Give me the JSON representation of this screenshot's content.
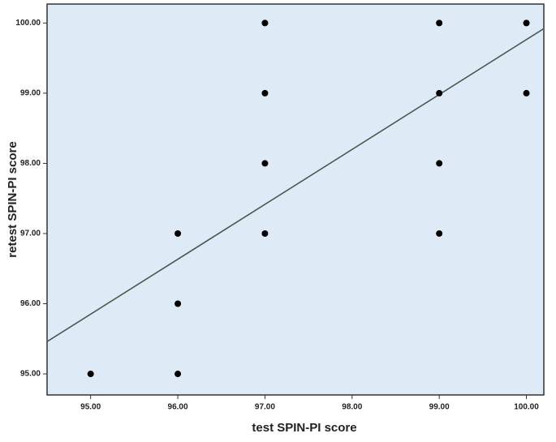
{
  "chart_data": {
    "type": "scatter",
    "x_label": "test SPIN-PI score",
    "y_label": "retest SPIN-PI score",
    "x": [
      95,
      96,
      96,
      96,
      97,
      97,
      97,
      97,
      99,
      99,
      99,
      99,
      100,
      100
    ],
    "y": [
      95,
      95,
      96,
      97,
      97,
      98,
      99,
      100,
      97,
      98,
      99,
      100,
      99,
      100
    ],
    "color": "#000000",
    "background": "#dfeaf7",
    "fit_line": {
      "color": "#4a5a50",
      "x": [
        94.5,
        100.2
      ],
      "y": [
        95.46,
        99.92
      ]
    },
    "xlim": [
      94.5,
      100.2
    ],
    "ylim": [
      94.7,
      100.27
    ],
    "xticks": [
      {
        "value": 95,
        "label": "95.00"
      },
      {
        "value": 96,
        "label": "96.00"
      },
      {
        "value": 97,
        "label": "97.00"
      },
      {
        "value": 98,
        "label": "98.00"
      },
      {
        "value": 99,
        "label": "99.00"
      },
      {
        "value": 100,
        "label": "100.00"
      }
    ],
    "yticks": [
      {
        "value": 95,
        "label": "95.00"
      },
      {
        "value": 96,
        "label": "96.00"
      },
      {
        "value": 97,
        "label": "97.00"
      },
      {
        "value": 98,
        "label": "98.00"
      },
      {
        "value": 99,
        "label": "99.00"
      },
      {
        "value": 100,
        "label": "100.00"
      }
    ]
  }
}
